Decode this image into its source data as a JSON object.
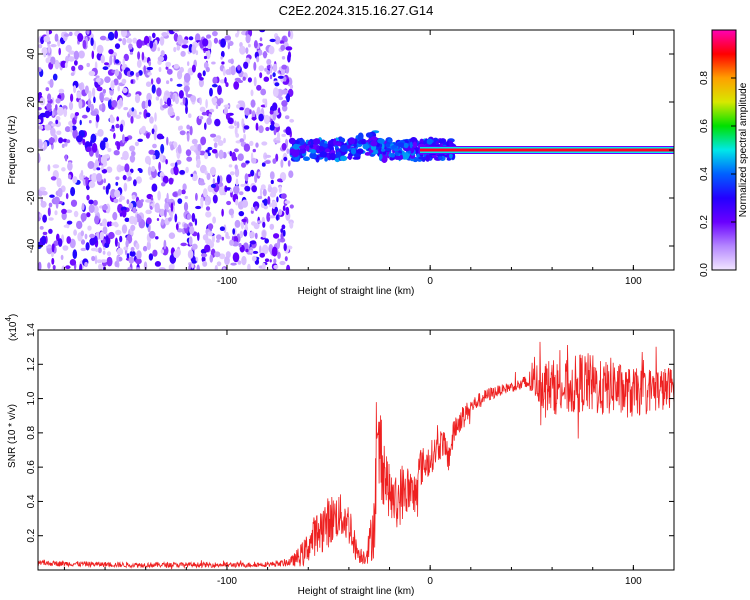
{
  "chart_data": [
    {
      "type": "heatmap",
      "title": "C2E2.2024.315.16.27.G14",
      "xlabel": "Height of straight line (km)",
      "ylabel": "Frequency (Hz)",
      "xlim": [
        -193,
        120
      ],
      "ylim": [
        -50,
        50
      ],
      "x_ticks": [
        -100,
        0,
        100
      ],
      "x_tick_labels": [
        "-100",
        "0",
        "100"
      ],
      "y_ticks": [
        -40,
        -20,
        0,
        20,
        40
      ],
      "y_tick_labels": [
        "-40",
        "-20",
        "0",
        "20",
        "40"
      ],
      "colorbar": {
        "label": "Normalized spectral amplitude",
        "range": [
          0,
          1
        ],
        "ticks": [
          0.0,
          0.2,
          0.4,
          0.6,
          0.8
        ],
        "tick_labels": [
          "0.0",
          "0.2",
          "0.4",
          "0.6",
          "0.8"
        ],
        "colors": [
          "#f2e6ff",
          "#b486ff",
          "#6a00ff",
          "#2400ff",
          "#0060ff",
          "#00e8e8",
          "#00e000",
          "#d8e800",
          "#ffa000",
          "#ff0000",
          "#ff00b4"
        ]
      },
      "regions": [
        {
          "x_range": [
            -193,
            -68
          ],
          "freq_range": [
            -50,
            50
          ],
          "amplitude": [
            0.02,
            0.25
          ],
          "pattern": "scattered noise"
        },
        {
          "x_range": [
            -68,
            12
          ],
          "freq_range": [
            -5,
            10
          ],
          "amplitude": [
            0.2,
            0.45
          ],
          "pattern": "clustered blobs near 0 Hz"
        },
        {
          "x_range": [
            -5,
            120
          ],
          "freq_range": [
            -1.5,
            1.5
          ],
          "amplitude": [
            0.9,
            1.0
          ],
          "pattern": "narrow band at 0 Hz"
        }
      ],
      "grid": false
    },
    {
      "type": "line",
      "title": "",
      "xlabel": "Height of straight line (km)",
      "ylabel": "SNR (10 * v/v)",
      "y_multiplier_label": "(x10",
      "y_multiplier_exp": "4",
      "y_multiplier_close": ")",
      "xlim": [
        -193,
        120
      ],
      "ylim": [
        0,
        14000
      ],
      "x_ticks": [
        -100,
        0,
        100
      ],
      "x_tick_labels": [
        "-100",
        "0",
        "100"
      ],
      "y_ticks": [
        2000,
        4000,
        6000,
        8000,
        10000,
        12000,
        14000
      ],
      "y_tick_labels": [
        "0.2",
        "0.4",
        "0.6",
        "0.8",
        "1.0",
        "1.2",
        "1.4"
      ],
      "series": [
        {
          "color": "#ee2020",
          "x": [
            -193,
            -170,
            -150,
            -130,
            -110,
            -90,
            -75,
            -68,
            -62,
            -57,
            -52,
            -48,
            -45,
            -42,
            -39,
            -37,
            -35,
            -32,
            -30,
            -28,
            -26,
            -24,
            -22,
            -20,
            -17,
            -14,
            -11,
            -8,
            -5,
            -2,
            0,
            3,
            6,
            9,
            12,
            15,
            20,
            25,
            30,
            35,
            40,
            45,
            50,
            55,
            60,
            65,
            70,
            75,
            80,
            85,
            90,
            95,
            100,
            105,
            110,
            115,
            120
          ],
          "values": [
            400,
            350,
            300,
            300,
            300,
            300,
            350,
            500,
            1000,
            2000,
            2600,
            3000,
            3200,
            3000,
            2500,
            1400,
            900,
            800,
            1400,
            2500,
            6000,
            7000,
            5500,
            4500,
            3800,
            4500,
            4700,
            4200,
            6000,
            6200,
            6500,
            7000,
            7500,
            6500,
            8200,
            8800,
            9500,
            10000,
            10300,
            10500,
            10700,
            10800,
            11000,
            10900,
            10700,
            10600,
            10700,
            11000,
            10800,
            10500,
            10800,
            10400,
            10300,
            10400,
            10600,
            10500,
            10800
          ],
          "noise_amplitude": [
            150,
            150,
            150,
            150,
            150,
            150,
            150,
            300,
            800,
            1200,
            1500,
            1500,
            1300,
            1300,
            1200,
            800,
            500,
            500,
            1000,
            2000,
            3500,
            3000,
            2000,
            1500,
            1500,
            1800,
            1500,
            1500,
            1200,
            1000,
            1000,
            900,
            900,
            900,
            800,
            700,
            500,
            400,
            400,
            300,
            300,
            400,
            800,
            1500,
            1600,
            1600,
            1700,
            1800,
            1800,
            1600,
            1700,
            1500,
            1500,
            1300,
            1300,
            1300,
            1200
          ]
        }
      ],
      "grid": false
    }
  ]
}
